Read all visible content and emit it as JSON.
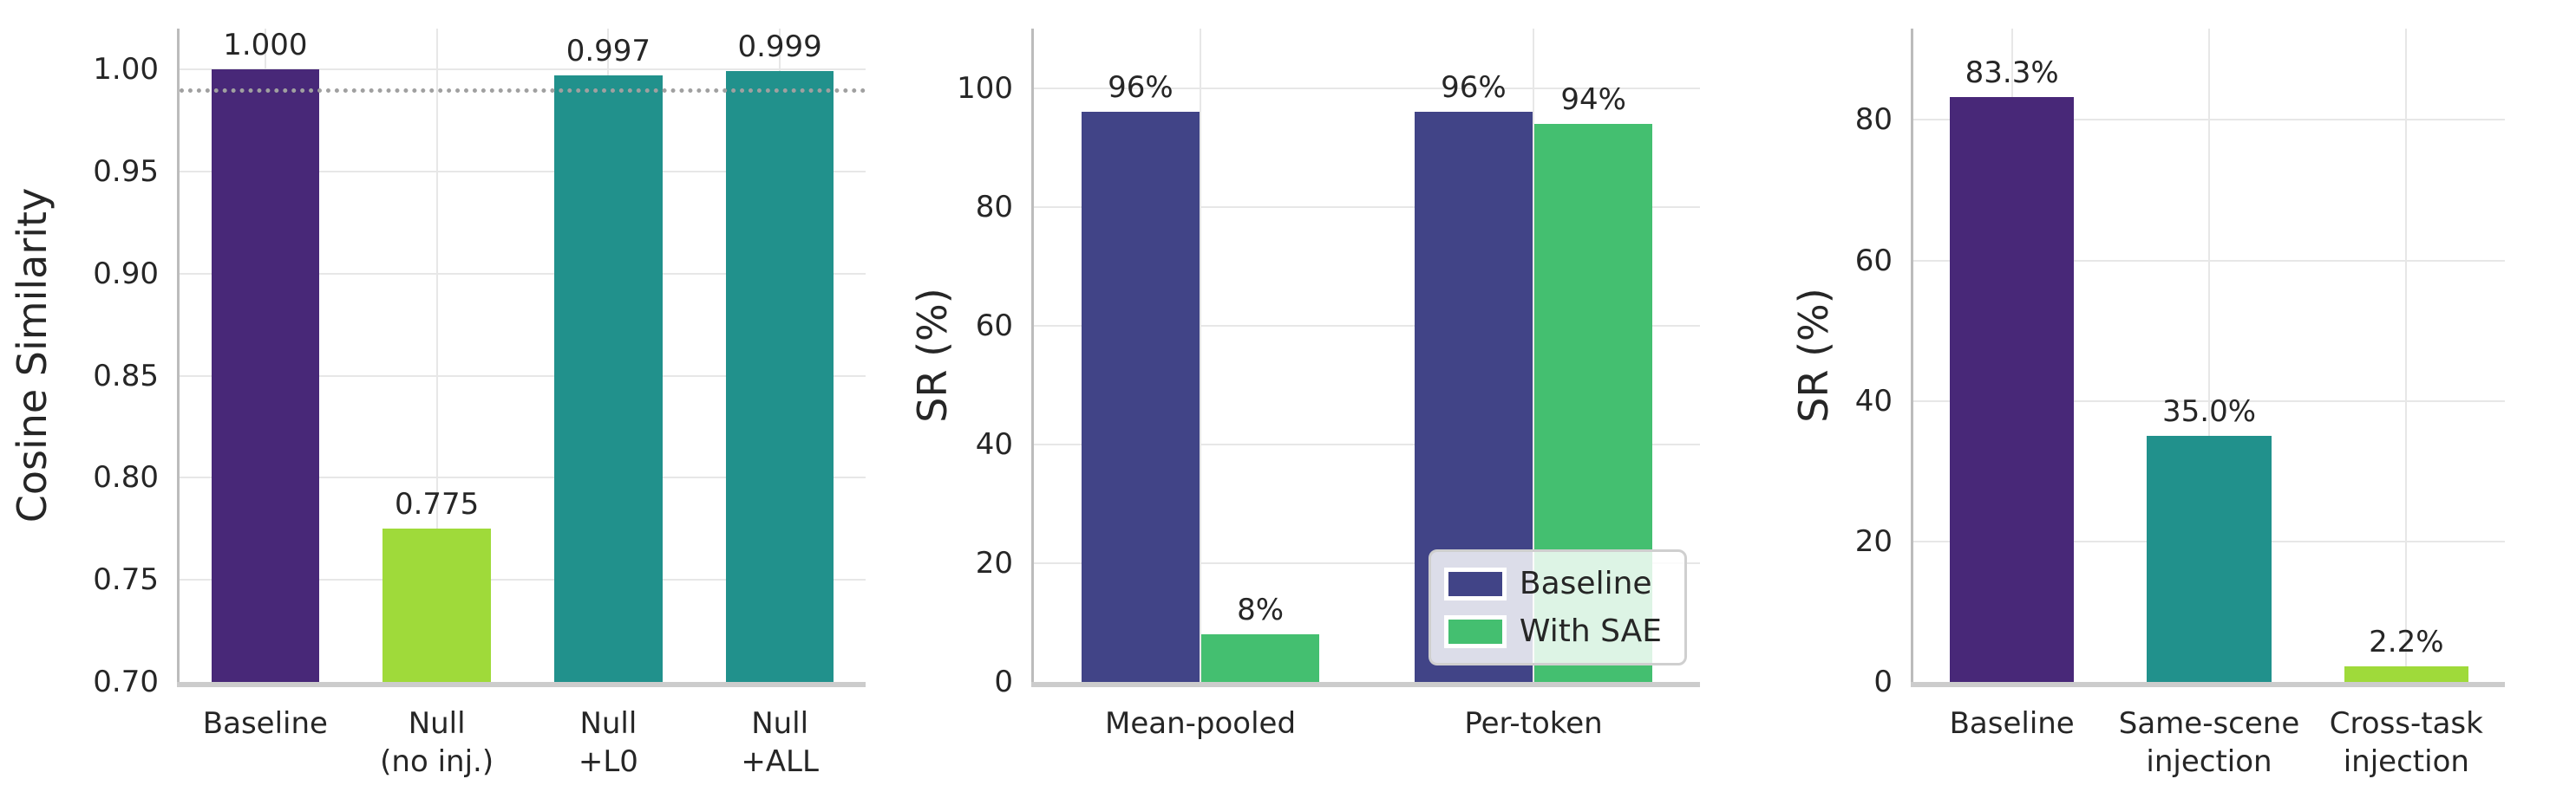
{
  "figure": {
    "background": "#ffffff",
    "text_color": "#262626",
    "grid_color": "#e7e7e7",
    "spine_color": "#cccccc"
  },
  "palette": {
    "purple": "#482878",
    "yellow_green": "#9fda3a",
    "teal": "#21918c",
    "indigo": "#414487",
    "green": "#44bf70",
    "reference_gray": "#a0a0a0"
  },
  "chart_data": [
    {
      "type": "bar",
      "title": "",
      "xlabel": "",
      "ylabel": "Cosine Similarity",
      "ylim": [
        0.7,
        1.02
      ],
      "yticks": [
        0.7,
        0.75,
        0.8,
        0.85,
        0.9,
        0.95,
        1.0
      ],
      "ytick_labels": [
        "0.70",
        "0.75",
        "0.80",
        "0.85",
        "0.90",
        "0.95",
        "1.00"
      ],
      "categories": [
        "Baseline",
        "Null\n(no inj.)",
        "Null\n+L0",
        "Null\n+ALL"
      ],
      "values": [
        1.0,
        0.775,
        0.997,
        0.999
      ],
      "bar_labels": [
        "1.000",
        "0.775",
        "0.997",
        "0.999"
      ],
      "bar_colors": [
        "#482878",
        "#9fda3a",
        "#21918c",
        "#21918c"
      ],
      "reference_line": {
        "value": 0.99,
        "style": "dotted",
        "color": "#a0a0a0"
      },
      "grid": true,
      "legend": null
    },
    {
      "type": "bar",
      "title": "",
      "xlabel": "",
      "ylabel": "SR (%)",
      "ylim": [
        0,
        110
      ],
      "yticks": [
        0,
        20,
        40,
        60,
        80,
        100
      ],
      "ytick_labels": [
        "0",
        "20",
        "40",
        "60",
        "80",
        "100"
      ],
      "categories": [
        "Mean-pooled",
        "Per-token"
      ],
      "series": [
        {
          "name": "Baseline",
          "color": "#414487",
          "values": [
            96,
            96
          ],
          "labels": [
            "96%",
            "96%"
          ]
        },
        {
          "name": "With SAE",
          "color": "#44bf70",
          "values": [
            8,
            94
          ],
          "labels": [
            "8%",
            "94%"
          ]
        }
      ],
      "grid": true,
      "legend": {
        "position": "lower-right",
        "entries": [
          {
            "label": "Baseline",
            "color": "#414487"
          },
          {
            "label": "With SAE",
            "color": "#44bf70"
          }
        ]
      }
    },
    {
      "type": "bar",
      "title": "",
      "xlabel": "",
      "ylabel": "SR (%)",
      "ylim": [
        0,
        93
      ],
      "yticks": [
        0,
        20,
        40,
        60,
        80
      ],
      "ytick_labels": [
        "0",
        "20",
        "40",
        "60",
        "80"
      ],
      "categories": [
        "Baseline",
        "Same-scene\ninjection",
        "Cross-task\ninjection"
      ],
      "values": [
        83.3,
        35.0,
        2.2
      ],
      "bar_labels": [
        "83.3%",
        "35.0%",
        "2.2%"
      ],
      "bar_colors": [
        "#482878",
        "#21918c",
        "#9fda3a"
      ],
      "grid": true,
      "legend": null
    }
  ]
}
